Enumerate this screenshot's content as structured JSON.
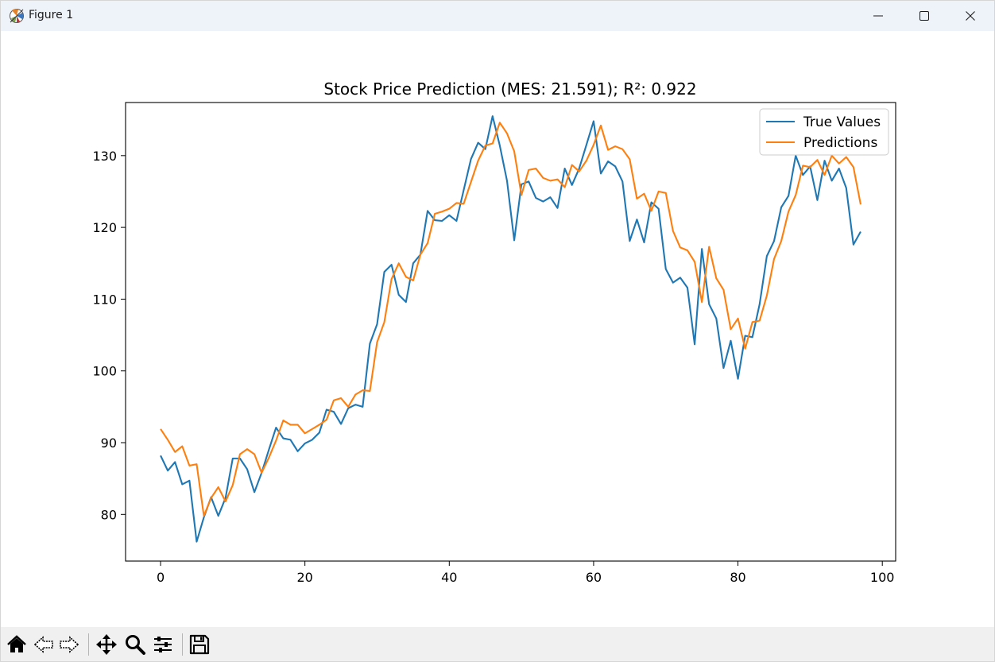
{
  "window": {
    "title": "Figure 1"
  },
  "toolbar": {
    "buttons": [
      {
        "name": "home-icon"
      },
      {
        "name": "back-icon"
      },
      {
        "name": "forward-icon"
      },
      {
        "name": "pan-icon"
      },
      {
        "name": "zoom-icon"
      },
      {
        "name": "configure-subplots-icon"
      },
      {
        "name": "save-icon"
      }
    ]
  },
  "chart_data": {
    "type": "line",
    "title": "Stock Price Prediction (MES: 21.591); R²: 0.922",
    "xlabel": "",
    "ylabel": "",
    "xlim": [
      -4.85,
      101.85
    ],
    "ylim": [
      73.5,
      137.4
    ],
    "xticks": [
      0,
      20,
      40,
      60,
      80,
      100
    ],
    "yticks": [
      80,
      90,
      100,
      110,
      120,
      130
    ],
    "xtick_labels": [
      "0",
      "20",
      "40",
      "60",
      "80",
      "100"
    ],
    "ytick_labels": [
      "80",
      "90",
      "100",
      "110",
      "120",
      "130"
    ],
    "grid": false,
    "legend_position": "upper right",
    "series": [
      {
        "name": "True Values",
        "color": "#1f77b4",
        "values": [
          88.2,
          86.1,
          87.3,
          84.2,
          84.7,
          76.2,
          79.6,
          82.4,
          79.8,
          82.3,
          87.8,
          87.8,
          86.3,
          83.1,
          85.8,
          89.0,
          92.1,
          90.6,
          90.4,
          88.8,
          89.9,
          90.4,
          91.4,
          94.6,
          94.3,
          92.6,
          94.8,
          95.3,
          95.0,
          103.8,
          106.5,
          113.8,
          114.8,
          110.6,
          109.6,
          115.0,
          116.2,
          122.3,
          121.0,
          120.9,
          121.7,
          120.9,
          125.2,
          129.5,
          131.8,
          130.9,
          135.5,
          131.4,
          126.5,
          118.2,
          126.0,
          126.4,
          124.1,
          123.6,
          124.2,
          122.7,
          128.2,
          125.9,
          128.2,
          131.5,
          134.8,
          127.5,
          129.2,
          128.5,
          126.4,
          118.1,
          121.1,
          117.9,
          123.5,
          122.6,
          114.2,
          112.3,
          113.0,
          111.6,
          103.7,
          117.0,
          109.3,
          107.3,
          100.4,
          104.2,
          98.9,
          104.9,
          104.7,
          109.3,
          116.0,
          118.1,
          122.8,
          124.4,
          130.0,
          127.3,
          128.5,
          123.8,
          129.3,
          126.5,
          128.2,
          125.5,
          117.6,
          119.4
        ]
      },
      {
        "name": "Predictions",
        "color": "#ff7f0e",
        "values": [
          91.9,
          90.4,
          88.7,
          89.5,
          86.8,
          87.0,
          79.8,
          82.3,
          83.8,
          81.8,
          84.1,
          88.4,
          89.1,
          88.4,
          85.8,
          87.9,
          90.3,
          93.1,
          92.5,
          92.5,
          91.3,
          91.9,
          92.5,
          93.2,
          95.9,
          96.2,
          95.0,
          96.7,
          97.3,
          97.2,
          104.0,
          106.8,
          112.8,
          115.0,
          113.1,
          112.6,
          116.2,
          117.8,
          121.9,
          122.2,
          122.6,
          123.4,
          123.3,
          126.3,
          129.3,
          131.4,
          131.7,
          134.6,
          133.1,
          130.6,
          124.5,
          128.0,
          128.2,
          126.9,
          126.5,
          126.7,
          125.6,
          128.7,
          127.8,
          129.3,
          131.5,
          134.2,
          130.8,
          131.3,
          130.9,
          129.5,
          124.0,
          124.7,
          122.3,
          125.0,
          124.8,
          119.5,
          117.2,
          116.8,
          115.2,
          109.6,
          117.3,
          112.9,
          111.3,
          105.8,
          107.3,
          103.1,
          106.8,
          107.0,
          110.5,
          115.6,
          118.1,
          122.2,
          124.5,
          128.6,
          128.4,
          129.4,
          127.3,
          130.0,
          128.9,
          129.8,
          128.4,
          123.2
        ]
      }
    ]
  }
}
